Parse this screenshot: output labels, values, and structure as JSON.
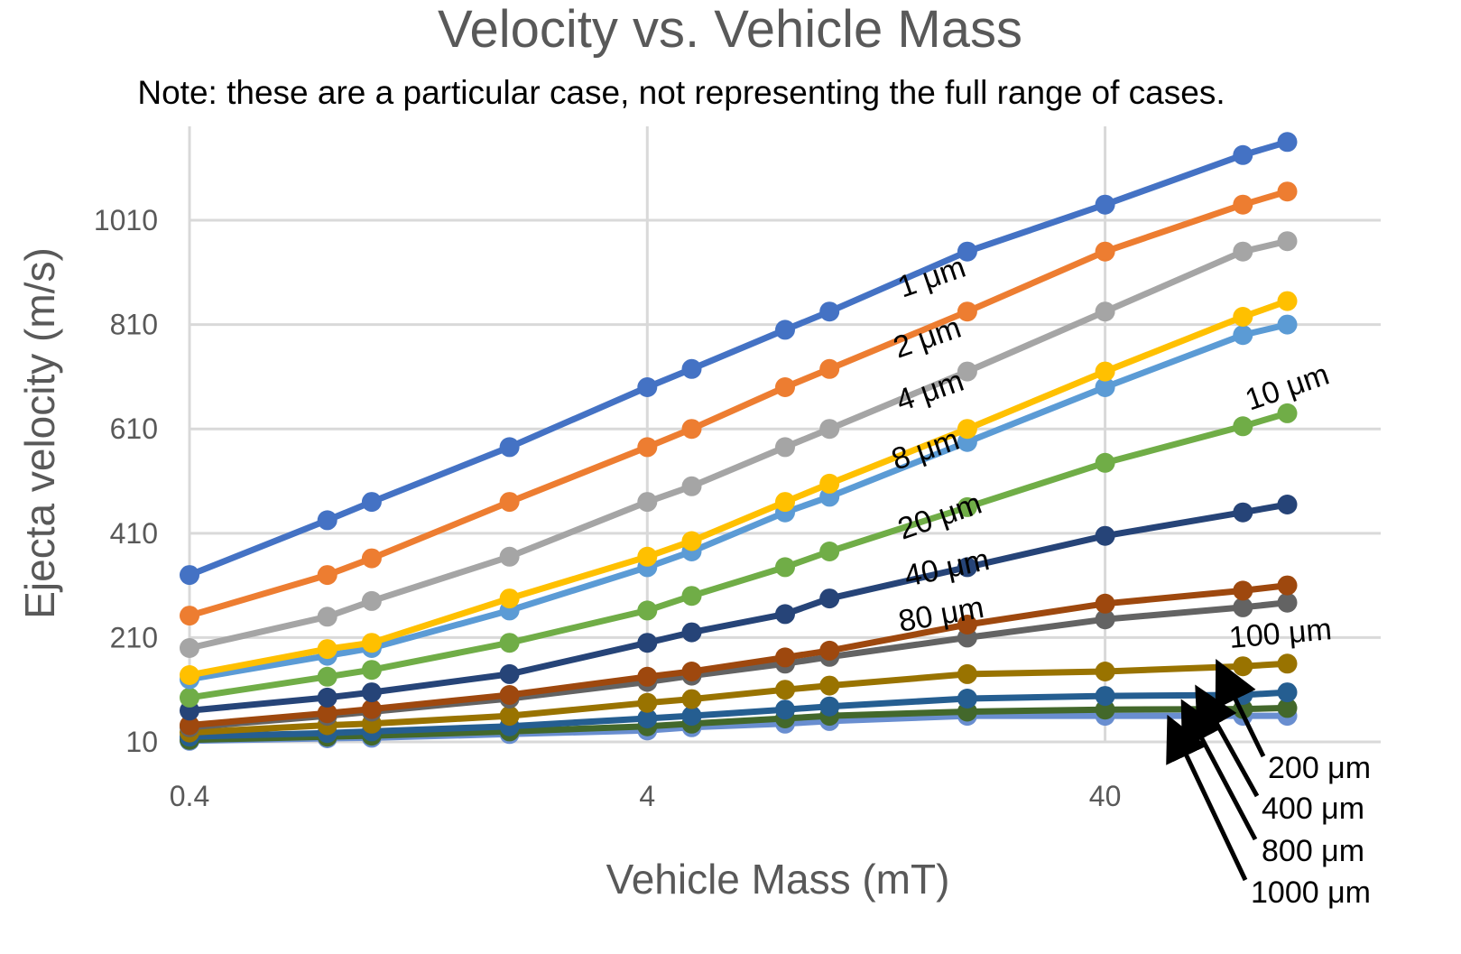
{
  "chart_data": {
    "type": "line",
    "title": "Velocity vs. Vehicle Mass",
    "subtitle": "Note: these are a particular case, not representing the full range of cases.",
    "xlabel": "Vehicle Mass (mT)",
    "ylabel": "Ejecta velocity (m/s)",
    "x_scale": "log",
    "x_ticks": [
      "0.4",
      "4",
      "40"
    ],
    "y_ticks": [
      "10",
      "210",
      "410",
      "610",
      "810",
      "1010"
    ],
    "xlim": [
      0.4,
      160
    ],
    "ylim": [
      10,
      1190
    ],
    "grid": true,
    "x": [
      0.4,
      0.8,
      1.0,
      2.0,
      4.0,
      5.0,
      8.0,
      10.0,
      20.0,
      40.0,
      80.0,
      100.0
    ],
    "series": [
      {
        "name": "1 μm",
        "color": "#4472C4",
        "values": [
          330,
          435,
          470,
          575,
          690,
          725,
          800,
          835,
          950,
          1040,
          1135,
          1160
        ]
      },
      {
        "name": "2 μm",
        "color": "#ED7D31",
        "values": [
          252,
          330,
          362,
          470,
          575,
          610,
          690,
          725,
          835,
          950,
          1040,
          1065
        ]
      },
      {
        "name": "4 μm",
        "color": "#A5A5A5",
        "values": [
          190,
          250,
          280,
          365,
          470,
          500,
          575,
          610,
          720,
          835,
          950,
          970
        ]
      },
      {
        "name": "8 μm",
        "color": "#FFC000",
        "values": [
          138,
          188,
          200,
          285,
          365,
          395,
          470,
          505,
          610,
          720,
          825,
          855
        ]
      },
      {
        "name": "10 μm",
        "color": "#5B9BD5",
        "values": [
          130,
          175,
          190,
          262,
          345,
          375,
          450,
          480,
          585,
          690,
          790,
          810
        ]
      },
      {
        "name": "20 μm",
        "color": "#70AD47",
        "values": [
          95,
          135,
          148,
          200,
          262,
          290,
          345,
          375,
          460,
          545,
          615,
          640
        ]
      },
      {
        "name": "40 μm",
        "color": "#264478",
        "values": [
          70,
          95,
          105,
          140,
          200,
          220,
          255,
          285,
          345,
          405,
          450,
          465
        ]
      },
      {
        "name": "80 μm",
        "color": "#9E480E",
        "values": [
          42,
          65,
          73,
          100,
          135,
          145,
          172,
          185,
          235,
          275,
          300,
          310
        ]
      },
      {
        "name": "100 μm",
        "color": "#636363",
        "values": [
          38,
          60,
          68,
          93,
          125,
          137,
          160,
          173,
          210,
          245,
          268,
          277
        ]
      },
      {
        "name": "200 μm",
        "color": "#997300",
        "values": [
          28,
          42,
          45,
          60,
          85,
          92,
          110,
          118,
          140,
          145,
          155,
          160
        ]
      },
      {
        "name": "400 μm",
        "color": "#255E91",
        "values": [
          20,
          27,
          30,
          40,
          55,
          60,
          72,
          78,
          93,
          98,
          100,
          105
        ]
      },
      {
        "name": "800 μm",
        "color": "#43682B",
        "values": [
          14,
          20,
          22,
          30,
          40,
          45,
          55,
          60,
          68,
          72,
          73,
          75
        ]
      },
      {
        "name": "1000 μm",
        "color": "#698ED0",
        "values": [
          12,
          17,
          18,
          25,
          32,
          38,
          45,
          50,
          60,
          60,
          60,
          60
        ]
      }
    ],
    "annotations": [
      "1 μm",
      "2 μm",
      "4 μm",
      "8 μm",
      "10 μm",
      "20 μm",
      "40 μm",
      "80 μm",
      "100 μm",
      "200 μm",
      "400 μm",
      "800 μm",
      "1000 μm"
    ]
  }
}
